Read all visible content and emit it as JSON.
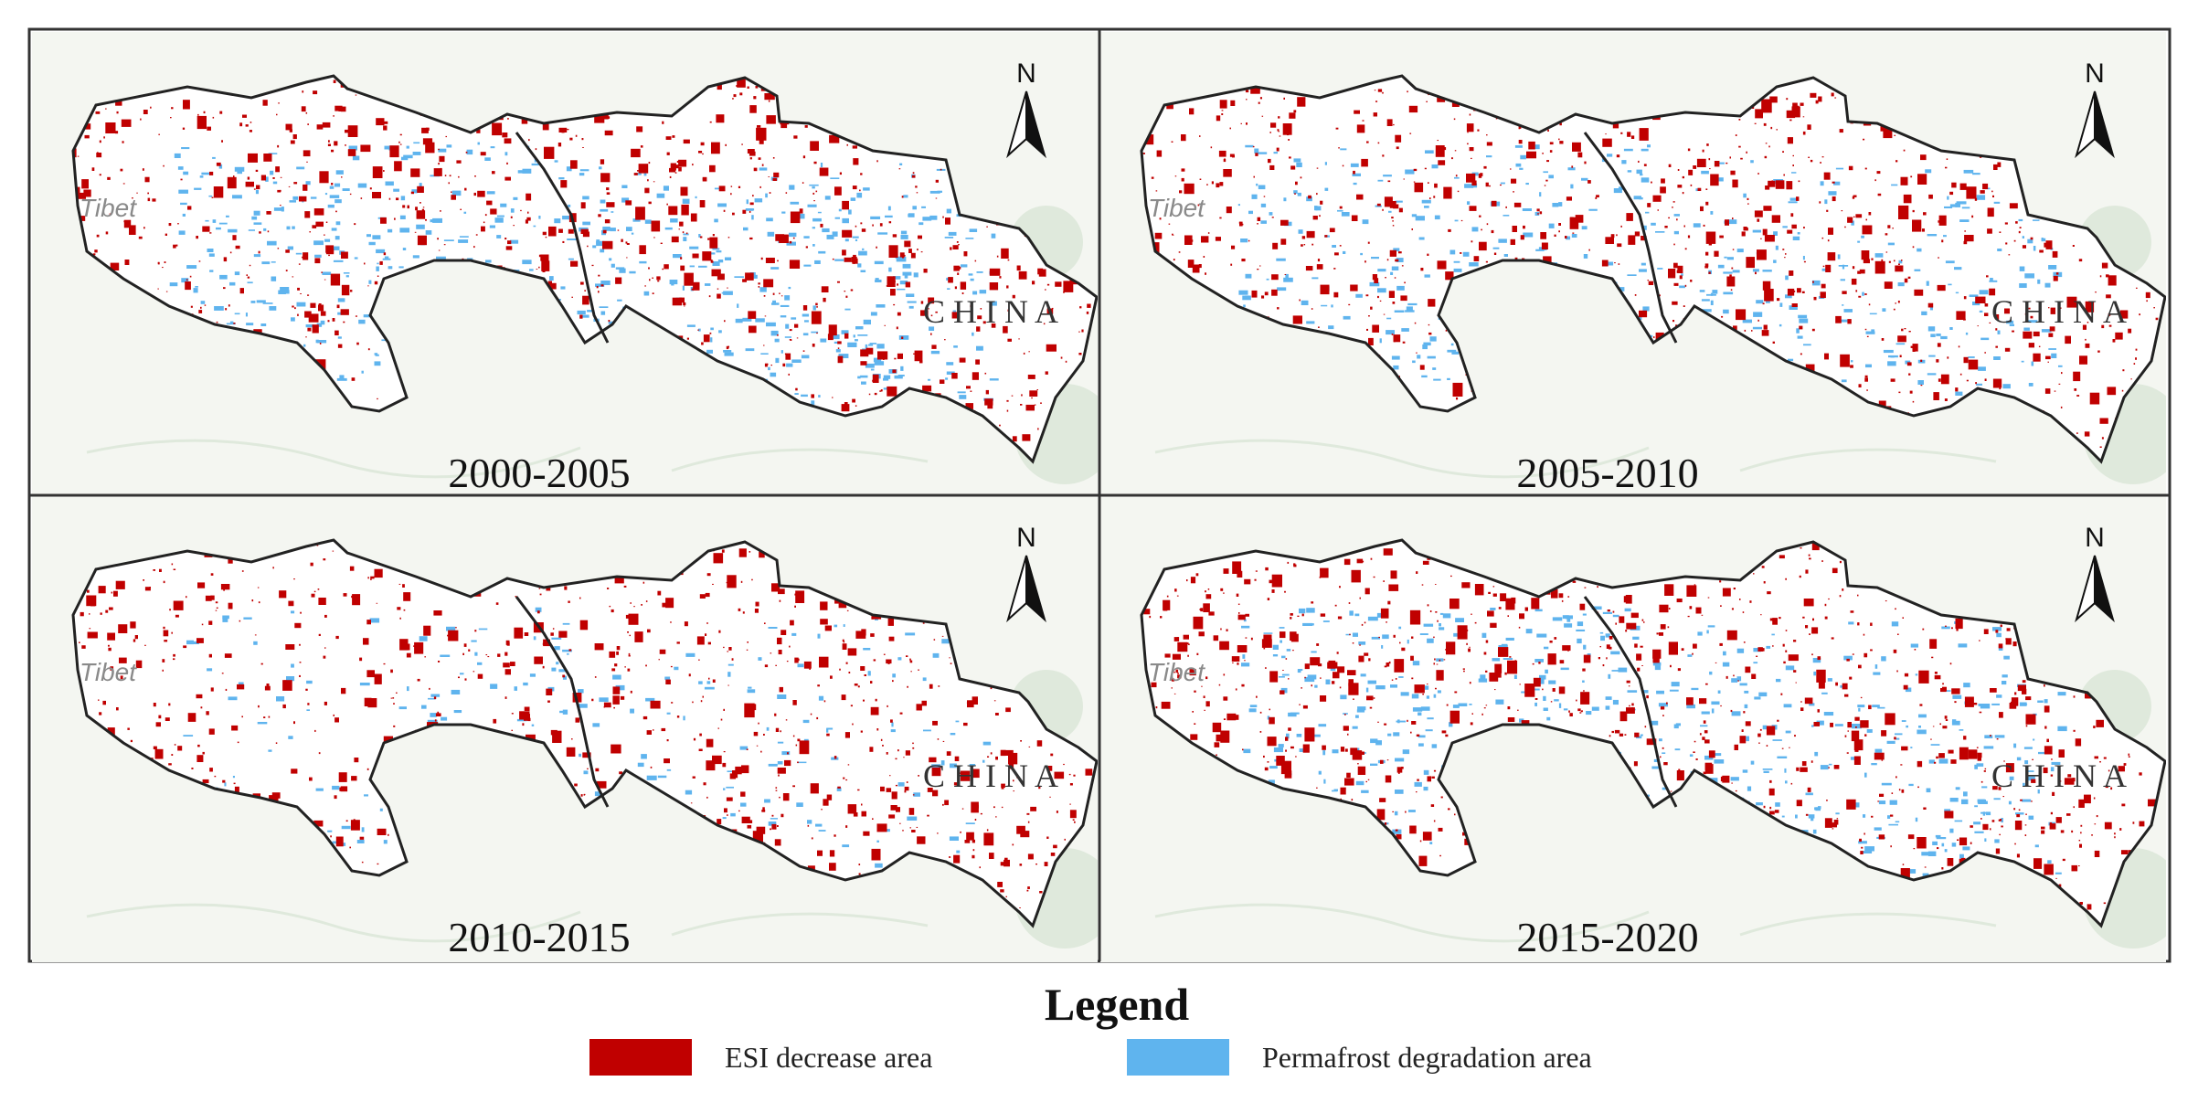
{
  "panels": [
    {
      "period": "2000-2005",
      "north_label": "N",
      "place_labels": [
        "Tibet",
        "C H I N A"
      ],
      "esi_density": 0.55,
      "permafrost_density": 0.35
    },
    {
      "period": "2005-2010",
      "north_label": "N",
      "place_labels": [
        "Tibet",
        "C H I N A"
      ],
      "esi_density": 0.55,
      "permafrost_density": 0.25
    },
    {
      "period": "2010-2015",
      "north_label": "N",
      "place_labels": [
        "Tibet",
        "C H I N A"
      ],
      "esi_density": 0.5,
      "permafrost_density": 0.12
    },
    {
      "period": "2015-2020",
      "north_label": "N",
      "place_labels": [
        "Tibet",
        "C H I N A"
      ],
      "esi_density": 0.6,
      "permafrost_density": 0.3
    }
  ],
  "legend": {
    "title": "Legend",
    "items": [
      {
        "label": "ESI decrease area",
        "color": "#c00000"
      },
      {
        "label": "Permafrost degradation area",
        "color": "#5fb4ee"
      }
    ]
  },
  "colors": {
    "basemap": "#f4f6f1",
    "basemap_feature": "#dfe9dc",
    "region_fill": "#ffffff",
    "region_outline": "#222222",
    "esi": "#c00000",
    "permafrost": "#5fb4ee",
    "panel_border": "#333333"
  }
}
